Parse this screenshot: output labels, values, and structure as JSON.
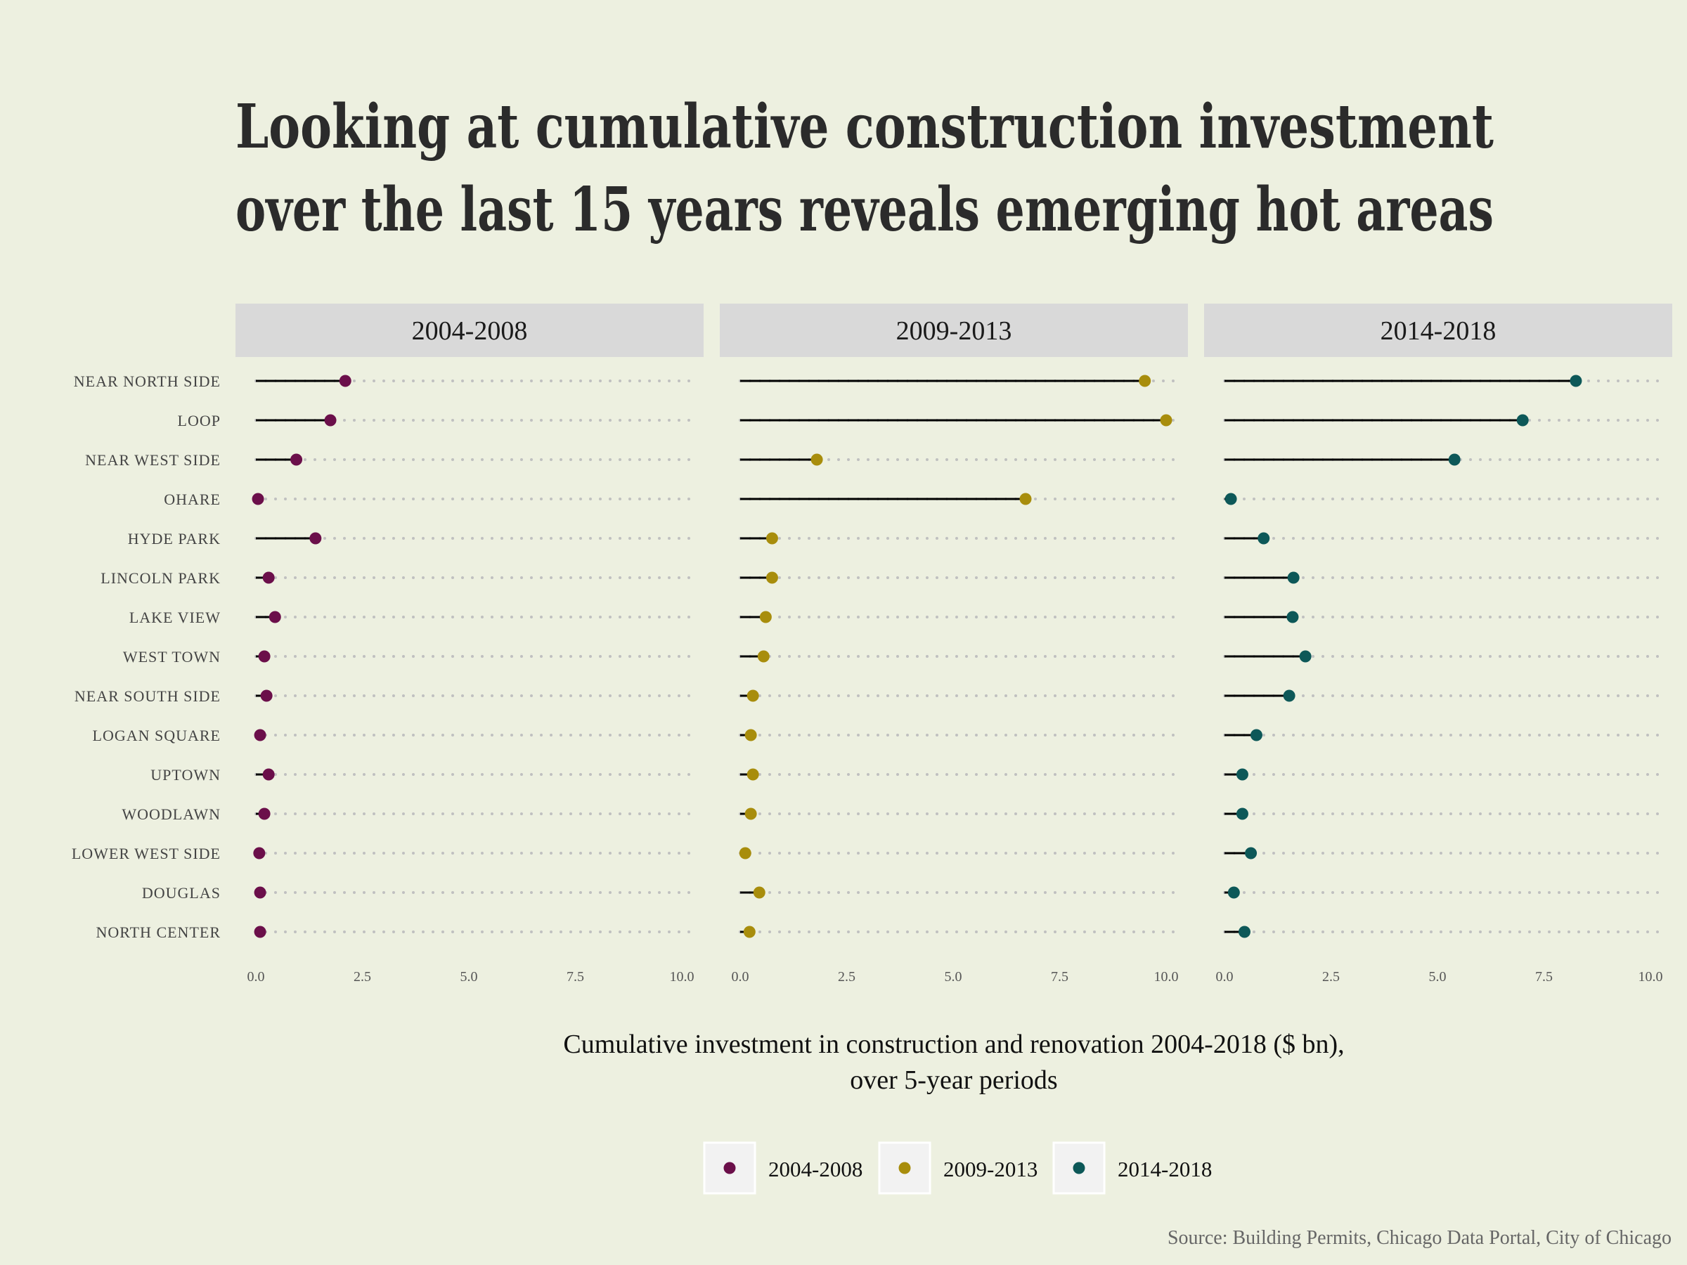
{
  "chart_data": {
    "type": "lollipop",
    "title_lines": [
      "Looking at cumulative construction investment",
      "over the last 15 years reveals emerging hot areas"
    ],
    "xlabel_lines": [
      "Cumulative investment in construction and renovation 2004-2018 ($ bn),",
      "over 5-year periods"
    ],
    "source": "Source: Building Permits, Chicago Data Portal, City of Chicago",
    "xlim": [
      0,
      10
    ],
    "x_ticks": [
      "0.0",
      "2.5",
      "5.0",
      "7.5",
      "10.0"
    ],
    "categories": [
      "NEAR NORTH SIDE",
      "LOOP",
      "NEAR WEST SIDE",
      "OHARE",
      "HYDE PARK",
      "LINCOLN PARK",
      "LAKE VIEW",
      "WEST TOWN",
      "NEAR SOUTH SIDE",
      "LOGAN SQUARE",
      "UPTOWN",
      "WOODLAWN",
      "LOWER WEST SIDE",
      "DOUGLAS",
      "NORTH CENTER"
    ],
    "series": [
      {
        "name": "2004-2008",
        "color": "#6b0f4a",
        "values": [
          2.1,
          1.75,
          0.95,
          0.05,
          1.4,
          0.3,
          0.45,
          0.2,
          0.25,
          0.1,
          0.3,
          0.2,
          0.08,
          0.1,
          0.1
        ]
      },
      {
        "name": "2009-2013",
        "color": "#a88d0c",
        "values": [
          9.5,
          10.0,
          1.8,
          6.7,
          0.75,
          0.75,
          0.6,
          0.55,
          0.3,
          0.25,
          0.3,
          0.25,
          0.12,
          0.45,
          0.22
        ]
      },
      {
        "name": "2014-2018",
        "color": "#0d5858",
        "values": [
          8.25,
          7.0,
          5.4,
          0.15,
          0.92,
          1.62,
          1.6,
          1.9,
          1.52,
          0.75,
          0.42,
          0.42,
          0.62,
          0.22,
          0.47
        ]
      }
    ],
    "grid": "dotted horizontal guides",
    "legend_position": "bottom"
  }
}
